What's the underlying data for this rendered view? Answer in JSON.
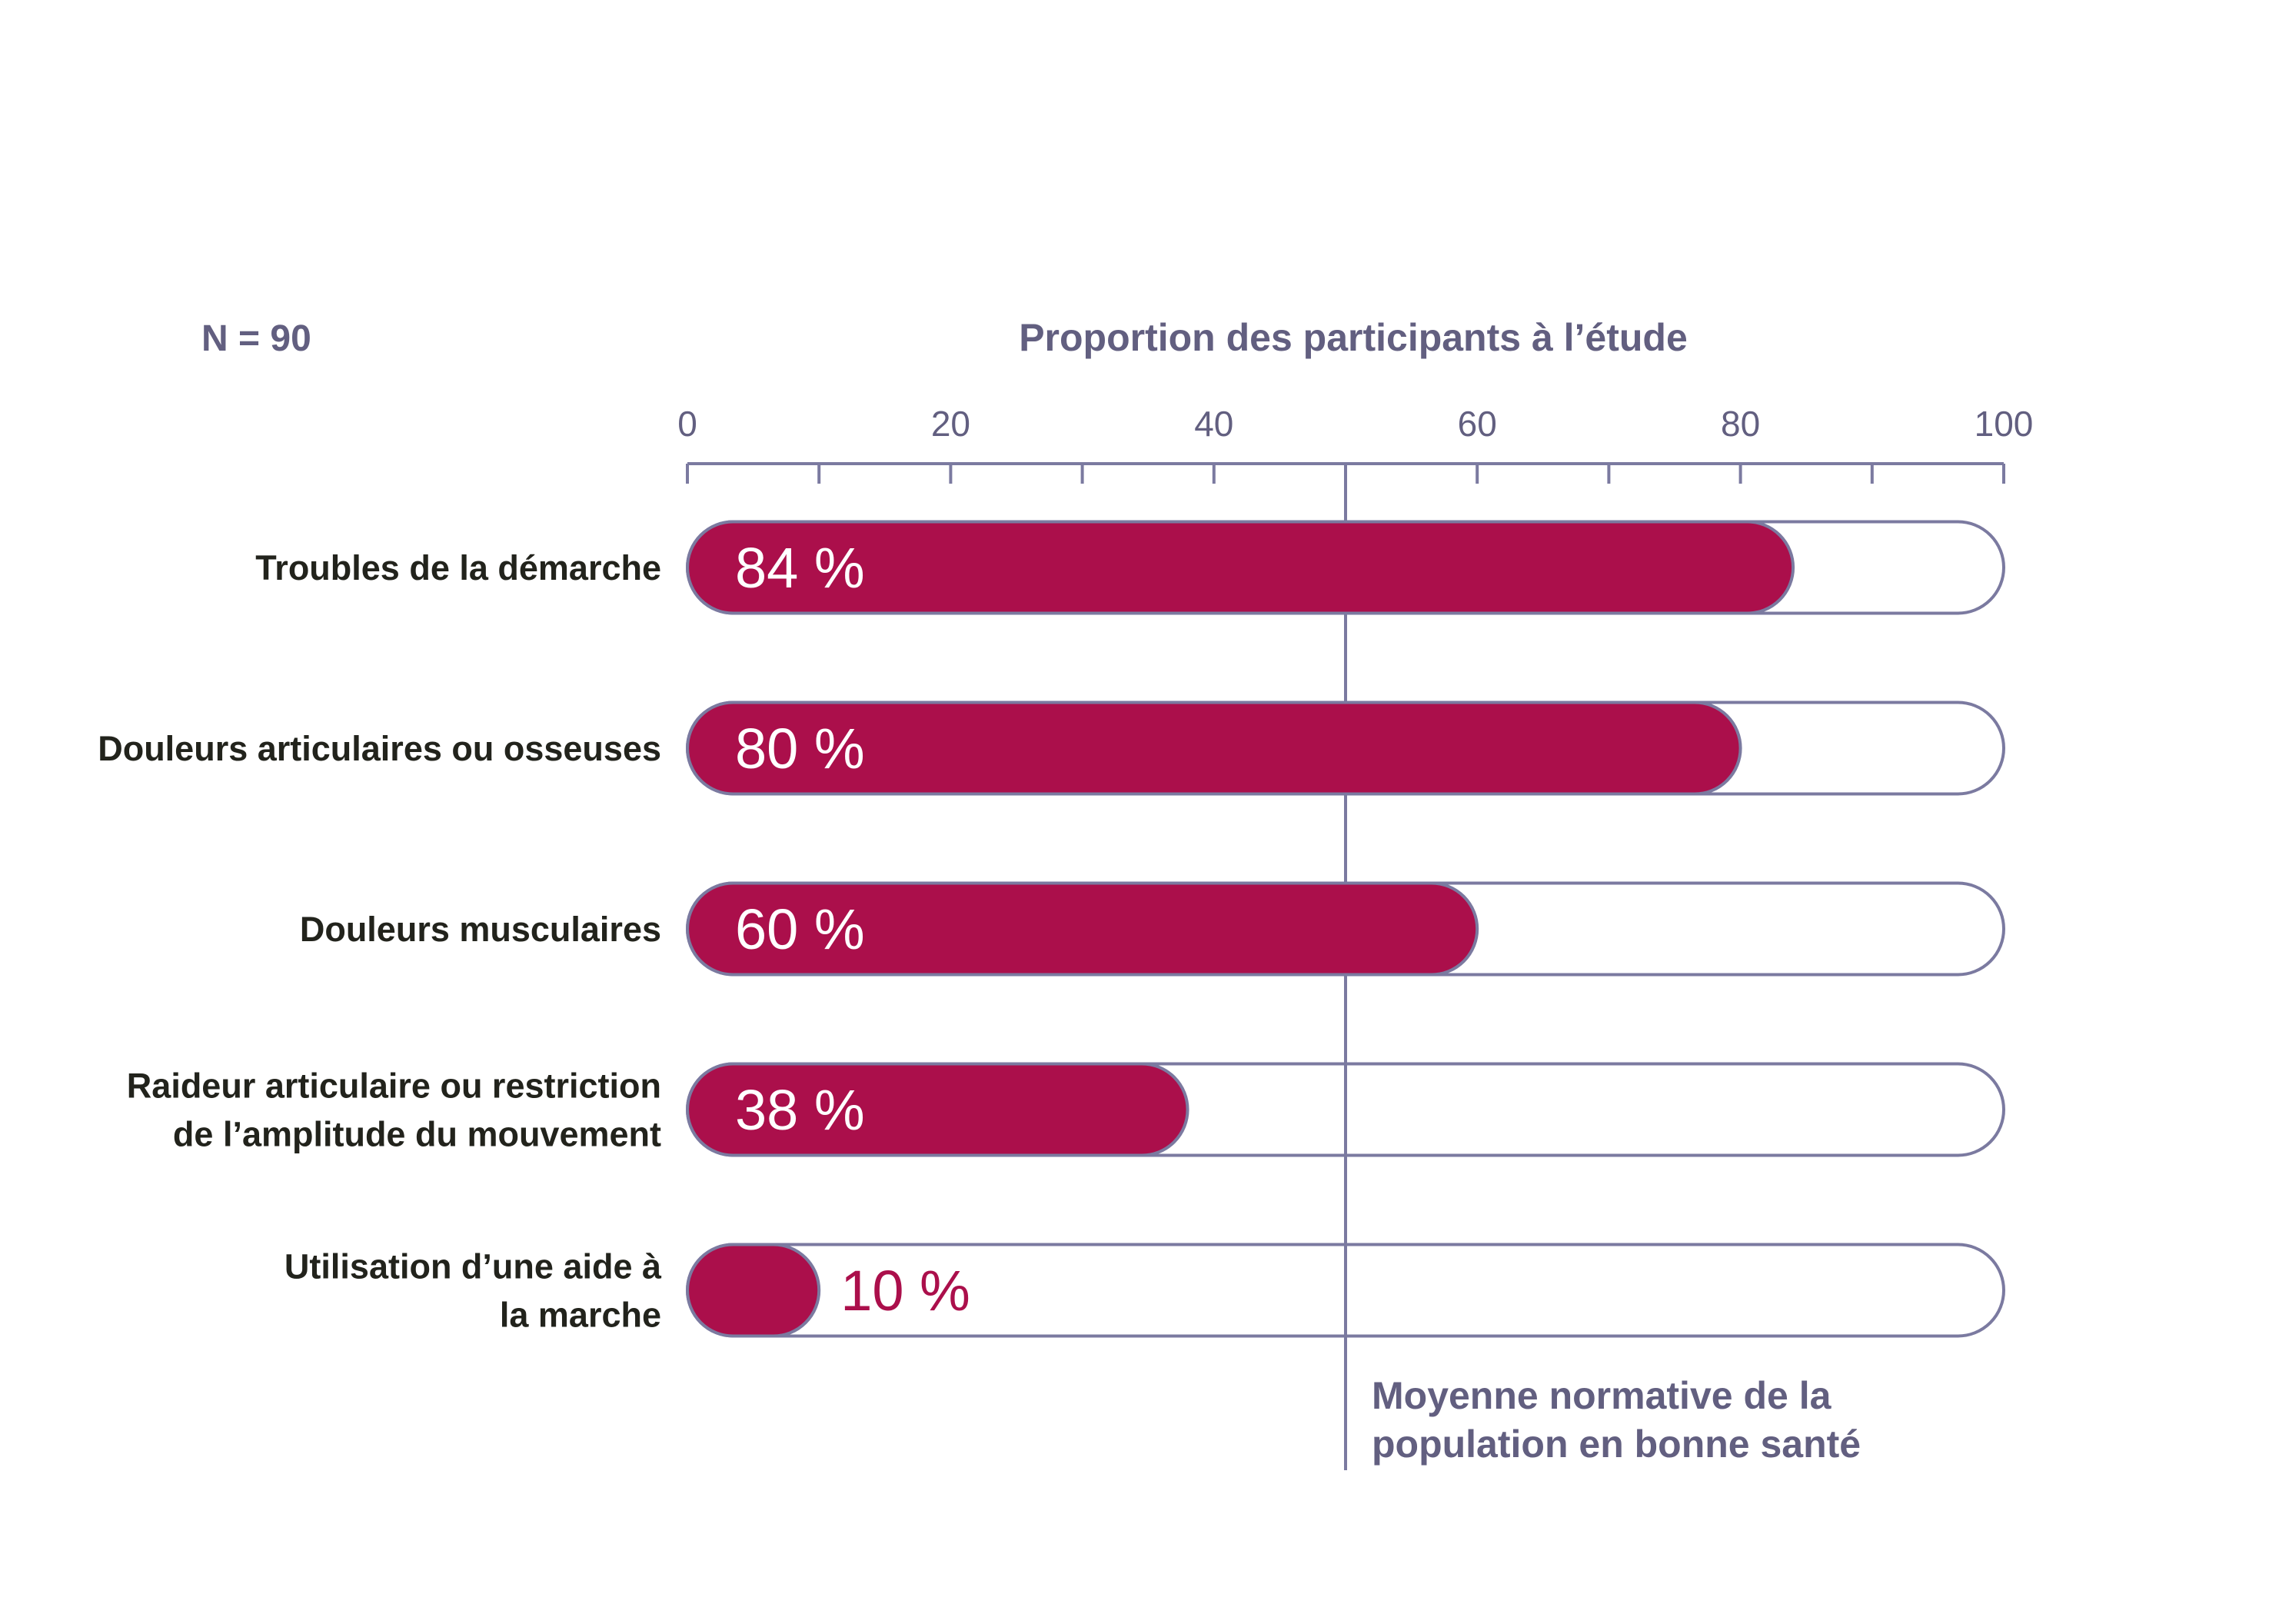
{
  "n_label": "N = 90",
  "colors": {
    "bar": "#ab0f4b",
    "outline": "#7b7aa0",
    "axis": "#7b7aa0",
    "text_dark": "#22231c",
    "text_muted": "#625f80"
  },
  "chart_data": {
    "type": "bar",
    "orientation": "horizontal",
    "title": "Proportion des participants à l’étude",
    "xlim": [
      0,
      100
    ],
    "x_ticks": [
      0,
      20,
      40,
      60,
      80,
      100
    ],
    "x_tick_labels": [
      "0",
      "20",
      "40",
      "60",
      "80",
      "100"
    ],
    "x_minor_ticks": [
      10,
      30,
      50,
      70,
      90
    ],
    "categories": [
      [
        "Troubles de la démarche"
      ],
      [
        "Douleurs articulaires ou osseuses"
      ],
      [
        "Douleurs musculaires"
      ],
      [
        "Raideur articulaire ou restriction",
        "de l’amplitude du mouvement"
      ],
      [
        "Utilisation d’une aide à",
        "la marche"
      ]
    ],
    "values": [
      84,
      80,
      60,
      38,
      10
    ],
    "value_labels": [
      "84 %",
      "80 %",
      "60 %",
      "38 %",
      "10 %"
    ],
    "reference_line": {
      "x": 50,
      "label": [
        "Moyenne normative de la",
        "population en bonne santé"
      ]
    },
    "grid": false,
    "legend": "none"
  }
}
